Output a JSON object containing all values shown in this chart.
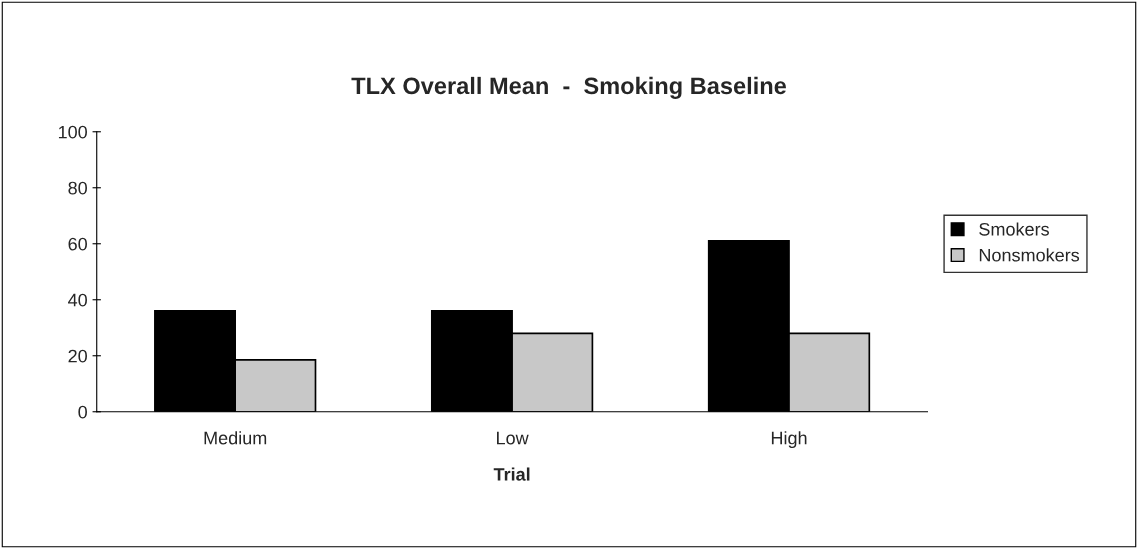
{
  "chart_data": {
    "type": "bar",
    "title": "TLX Overall Mean  -  Smoking Baseline",
    "xlabel": "Trial",
    "categories": [
      "Medium",
      "Low",
      "High"
    ],
    "series": [
      {
        "name": "Smokers",
        "color": "#000000",
        "values": [
          36,
          36,
          61
        ]
      },
      {
        "name": "Nonsmokers",
        "color": "#c8c8c8",
        "values": [
          18.5,
          28,
          28
        ]
      }
    ],
    "ylim": [
      0,
      100
    ],
    "yticks": [
      0,
      20,
      40,
      60,
      80,
      100
    ],
    "grid": false,
    "legend": "right"
  }
}
